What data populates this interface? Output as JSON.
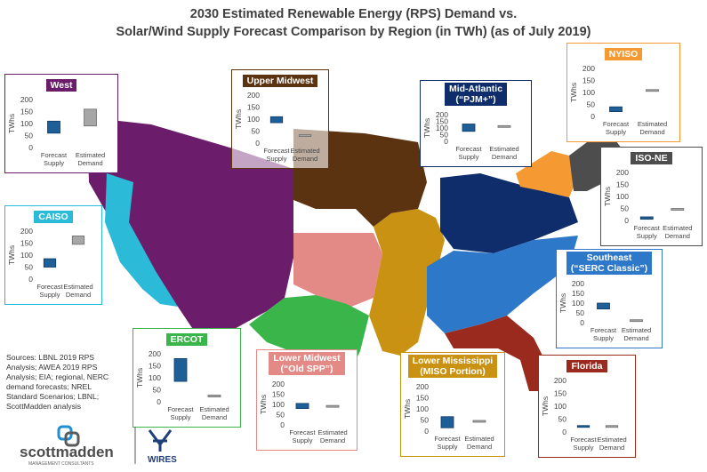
{
  "title_line1": "2030 Estimated Renewable Energy (RPS) Demand vs.",
  "title_line2": "Solar/Wind Supply Forecast Comparison by Region (in TWh) (as of July 2019)",
  "sources": "Sources: LBNL 2019 RPS Analysis; AWEA 2019 RPS Analysis; EIA; regional, NERC demand forecasts; NREL Standard Scenarios; LBNL; ScottMadden analysis",
  "logo_main": "scottmadden",
  "logo_sub": "MANAGEMENT CONSULTANTS",
  "logo_wires": "WIRES",
  "colors": {
    "supply": "#1f5f98",
    "demand": "#a6a6a6",
    "west": "#6b1d6b",
    "caiso": "#2bbbd8",
    "upper_midwest": "#5c3310",
    "mid_atlantic": "#0f2d6b",
    "nyiso": "#f59a32",
    "iso_ne": "#4d4d4d",
    "southeast": "#2e78c9",
    "florida": "#9b2a1e",
    "lower_mississippi": "#c99213",
    "lower_midwest": "#e48a86",
    "ercot": "#3ab54a"
  },
  "chart_data": [
    {
      "type": "bar",
      "region": "West",
      "title": "West",
      "categories": [
        "Forecast Supply",
        "Estimated Demand"
      ],
      "ylabel": "TWhs",
      "ylim": [
        0,
        200
      ],
      "yticks": [
        0,
        50,
        100,
        150,
        200
      ],
      "floating": [
        [
          60,
          110
        ],
        [
          90,
          160
        ]
      ]
    },
    {
      "type": "bar",
      "region": "CAISO",
      "title": "CAISO",
      "categories": [
        "Forecast Supply",
        "Estimated Demand"
      ],
      "ylabel": "TWhs",
      "ylim": [
        0,
        200
      ],
      "yticks": [
        0,
        50,
        100,
        150,
        200
      ],
      "floating": [
        [
          50,
          85
        ],
        [
          145,
          180
        ]
      ]
    },
    {
      "type": "bar",
      "region": "Upper Midwest",
      "title": "Upper Midwest",
      "categories": [
        "Forecast Supply",
        "Estimated Demand"
      ],
      "ylabel": "TWhs",
      "ylim": [
        0,
        200
      ],
      "yticks": [
        0,
        50,
        100,
        150,
        200
      ],
      "floating": [
        [
          85,
          110
        ],
        [
          30,
          35
        ]
      ]
    },
    {
      "type": "bar",
      "region": "Mid-Atlantic",
      "title": "Mid-Atlantic\n(“PJM+”)",
      "categories": [
        "Forecast Supply",
        "Estimated Demand"
      ],
      "ylabel": "TWhs",
      "ylim": [
        0,
        200
      ],
      "yticks": [
        0,
        50,
        100,
        150,
        200
      ],
      "floating": [
        [
          75,
          130
        ],
        [
          110,
          118
        ]
      ]
    },
    {
      "type": "bar",
      "region": "NYISO",
      "title": "NYISO",
      "categories": [
        "Forecast Supply",
        "Estimated Demand"
      ],
      "ylabel": "TWhs",
      "ylim": [
        0,
        200
      ],
      "yticks": [
        0,
        50,
        100,
        150,
        200
      ],
      "floating": [
        [
          20,
          40
        ],
        [
          105,
          112
        ]
      ]
    },
    {
      "type": "bar",
      "region": "ISO-NE",
      "title": "ISO-NE",
      "categories": [
        "Forecast Supply",
        "Estimated Demand"
      ],
      "ylabel": "TWhs",
      "ylim": [
        0,
        200
      ],
      "yticks": [
        0,
        50,
        100,
        150,
        200
      ],
      "floating": [
        [
          5,
          15
        ],
        [
          45,
          50
        ]
      ]
    },
    {
      "type": "bar",
      "region": "Southeast",
      "title": "Southeast\n(“SERC Classic”)",
      "categories": [
        "Forecast Supply",
        "Estimated Demand"
      ],
      "ylabel": "TWhs",
      "ylim": [
        0,
        200
      ],
      "yticks": [
        0,
        50,
        100,
        150,
        200
      ],
      "floating": [
        [
          70,
          100
        ],
        [
          10,
          15
        ]
      ]
    },
    {
      "type": "bar",
      "region": "Florida",
      "title": "Florida",
      "categories": [
        "Forecast Supply",
        "Estimated Demand"
      ],
      "ylabel": "TWhs",
      "ylim": [
        0,
        200
      ],
      "yticks": [
        0,
        50,
        100,
        150,
        200
      ],
      "floating": [
        [
          20,
          25
        ],
        [
          20,
          25
        ]
      ]
    },
    {
      "type": "bar",
      "region": "Lower Mississippi",
      "title": "Lower Mississippi\n(MISO Portion)",
      "categories": [
        "Forecast Supply",
        "Estimated Demand"
      ],
      "ylabel": "TWhs",
      "ylim": [
        0,
        200
      ],
      "yticks": [
        0,
        50,
        100,
        150,
        200
      ],
      "floating": [
        [
          15,
          65
        ],
        [
          40,
          48
        ]
      ]
    },
    {
      "type": "bar",
      "region": "Lower Midwest",
      "title": "Lower Midwest\n(“Old SPP”)",
      "categories": [
        "Forecast Supply",
        "Estimated Demand"
      ],
      "ylabel": "TWhs",
      "ylim": [
        0,
        200
      ],
      "yticks": [
        0,
        50,
        100,
        150,
        200
      ],
      "floating": [
        [
          80,
          105
        ],
        [
          90,
          95
        ]
      ]
    },
    {
      "type": "bar",
      "region": "ERCOT",
      "title": "ERCOT",
      "categories": [
        "Forecast Supply",
        "Estimated Demand"
      ],
      "ylabel": "TWhs",
      "ylim": [
        0,
        200
      ],
      "yticks": [
        0,
        50,
        100,
        150,
        200
      ],
      "floating": [
        [
          85,
          180
        ],
        [
          20,
          28
        ]
      ]
    }
  ]
}
